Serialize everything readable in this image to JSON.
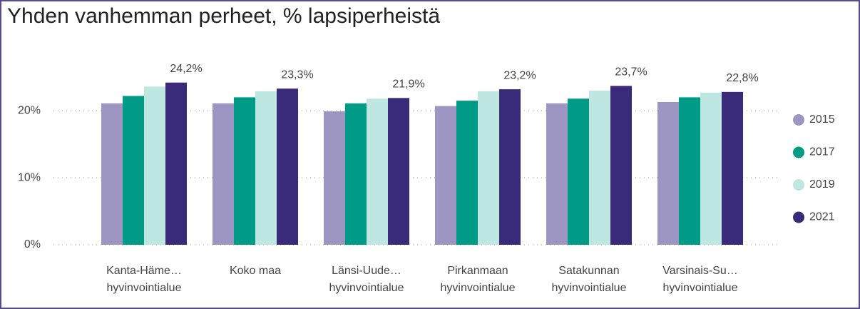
{
  "chart_data": {
    "type": "bar",
    "title": "Yhden vanhemman perheet, % lapsiperheistä",
    "categories": [
      [
        "Kanta-Häme…",
        "hyvinvointialue"
      ],
      [
        "Koko maa"
      ],
      [
        "Länsi-Uude…",
        "hyvinvointialue"
      ],
      [
        "Pirkanmaan",
        "hyvinvointialue"
      ],
      [
        "Satakunnan",
        "hyvinvointialue"
      ],
      [
        "Varsinais-Su…",
        "hyvinvointialue"
      ]
    ],
    "series": [
      {
        "name": "2015",
        "color": "#9d95c2",
        "values": [
          21.1,
          21.1,
          19.9,
          20.7,
          21.1,
          21.3
        ]
      },
      {
        "name": "2017",
        "color": "#009b87",
        "values": [
          22.2,
          22.0,
          21.1,
          21.5,
          21.8,
          22.0
        ]
      },
      {
        "name": "2019",
        "color": "#bfe7e2",
        "values": [
          23.6,
          22.9,
          21.8,
          22.9,
          23.0,
          22.7
        ]
      },
      {
        "name": "2021",
        "color": "#3b2a79",
        "values": [
          24.2,
          23.3,
          21.9,
          23.2,
          23.7,
          22.8
        ],
        "value_labels": [
          "24,2%",
          "23,3%",
          "21,9%",
          "23,2%",
          "23,7%",
          "22,8%"
        ]
      }
    ],
    "ylim": [
      0,
      28
    ],
    "yticks": [
      {
        "value": 0,
        "label": "0%"
      },
      {
        "value": 10,
        "label": "10%"
      },
      {
        "value": 20,
        "label": "20%"
      }
    ],
    "grid": true,
    "legend": "right"
  }
}
